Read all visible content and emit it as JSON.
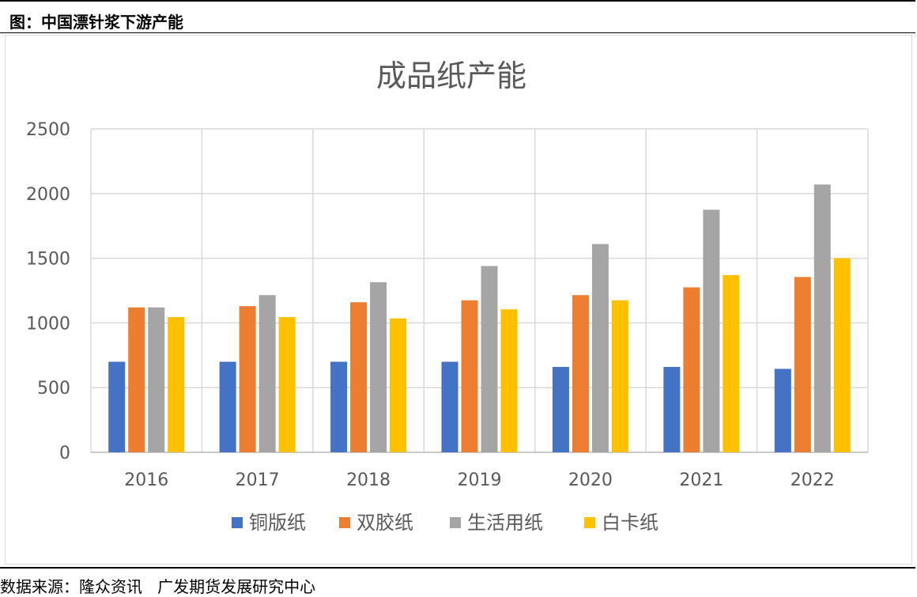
{
  "figure": {
    "caption": "图：中国漂针浆下游产能",
    "source": "数据来源：隆众资讯   广发期货发展研究中心"
  },
  "chart_data": {
    "type": "bar",
    "title": "成品纸产能",
    "xlabel": "",
    "ylabel": "",
    "categories": [
      "2016",
      "2017",
      "2018",
      "2019",
      "2020",
      "2021",
      "2022"
    ],
    "ylim": [
      0,
      2500
    ],
    "yticks": [
      0,
      500,
      1000,
      1500,
      2000,
      2500
    ],
    "grid": true,
    "legend": "bottom",
    "series": [
      {
        "name": "铜版纸",
        "color": "#4472c4",
        "values": [
          700,
          700,
          700,
          700,
          660,
          660,
          645
        ]
      },
      {
        "name": "双胶纸",
        "color": "#ed7d31",
        "values": [
          1120,
          1130,
          1160,
          1175,
          1215,
          1275,
          1355
        ]
      },
      {
        "name": "生活用纸",
        "color": "#a5a5a5",
        "values": [
          1120,
          1215,
          1315,
          1440,
          1610,
          1875,
          2070
        ]
      },
      {
        "name": "白卡纸",
        "color": "#ffc000",
        "values": [
          1045,
          1045,
          1035,
          1105,
          1175,
          1370,
          1500
        ]
      }
    ]
  }
}
